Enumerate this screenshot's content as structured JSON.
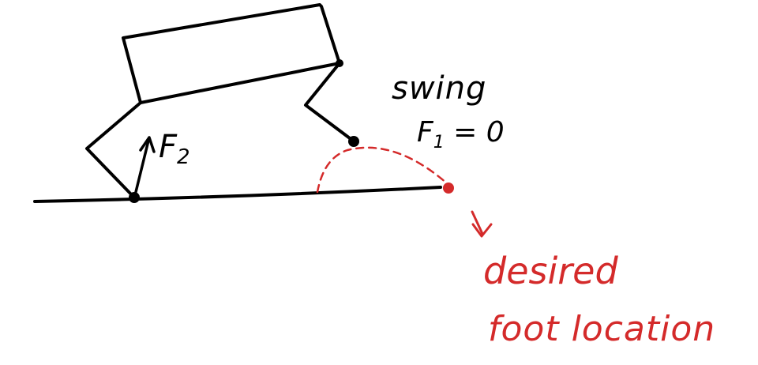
{
  "labels": {
    "stance_force": "F",
    "stance_force_sub": "2",
    "swing_word": "swing",
    "swing_force": "F",
    "swing_force_sub": "1",
    "swing_force_eq": "= 0",
    "desired_line1": "desired",
    "desired_line2": "foot location"
  },
  "colors": {
    "ink": "#000000",
    "target": "#d42a2a",
    "background": "#ffffff"
  }
}
